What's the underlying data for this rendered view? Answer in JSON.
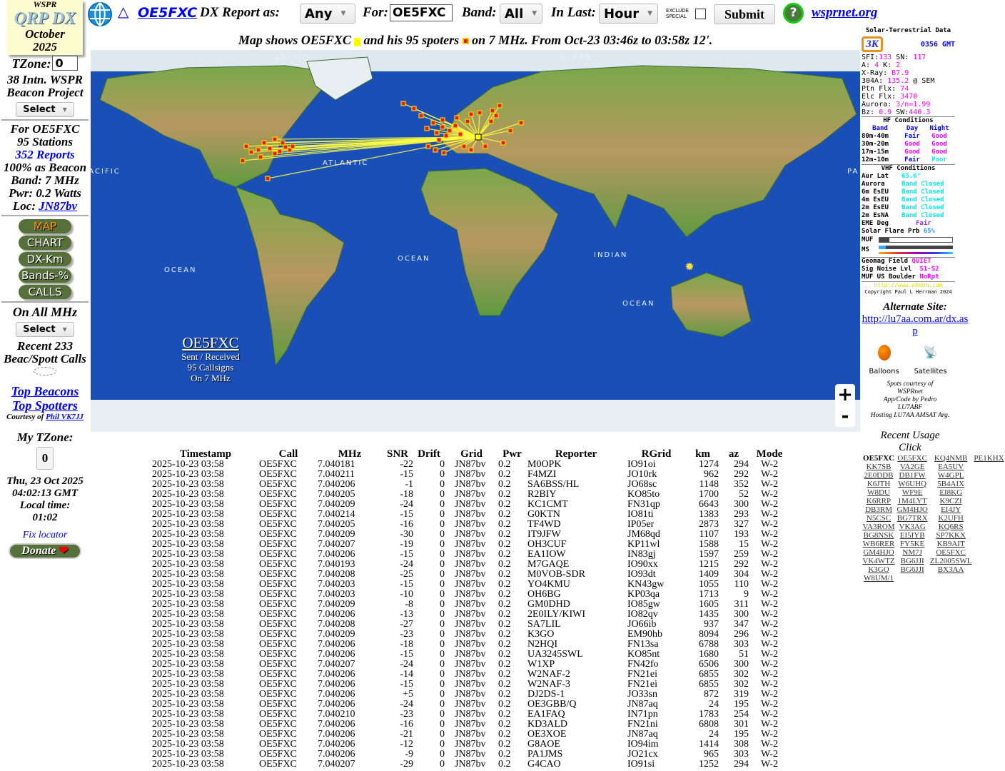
{
  "logo": {
    "top": "WSPR",
    "main": "QRP DX",
    "month": "October",
    "year": "2025"
  },
  "header": {
    "callsign_link": "OE5FXC",
    "report_as_label": "DX Report as:",
    "report_as_value": "Any",
    "for_label": "For:",
    "for_value": "OE5FXC",
    "band_label": "Band:",
    "band_value": "All",
    "in_last_label": "In Last:",
    "in_last_value": "Hour",
    "exclude_special": "EXCLUDE\nSPECIAL",
    "exclude_checked": false,
    "submit": "Submit",
    "help": "?",
    "wsprnet_link": "wsprnet.org"
  },
  "map_title": {
    "p1": "Map shows OE5FXC",
    "p2": "and his 95 spoters",
    "p3": "on 7 MHz. From Oct-23 03:46z to 03:58z 12'."
  },
  "sidebar": {
    "tzone_label": "TZone:",
    "tzone_value": "0",
    "project": "38 Intn. WSPR Beacon Project",
    "select": "Select",
    "for": "For OE5FXC",
    "stations": "95 Stations",
    "reports": "352 Reports",
    "beacon": "100% as Beacon",
    "band": "Band: 7 MHz",
    "pwr": "Pwr: 0.2 Watts",
    "loc_label": "Loc:",
    "loc": "JN87bv",
    "buttons": [
      "MAP",
      "CHART",
      "DX-Km",
      "Bands-%",
      "CALLS"
    ],
    "on_all": "On All MHz",
    "select2": "Select",
    "recent": "Recent 233 Beac/Spott Calls",
    "top_beacons": "Top Beacons",
    "top_spotters": "Top Spotters",
    "courtesy": "Courtesy of",
    "phil": "Phil VK7JJ",
    "my_tzone": "My TZone:",
    "my_tzone_value": "0",
    "datetime": "Thu, 23 Oct 2025 04:02:13 GMT",
    "local_label": "Local time:",
    "local": "01:02",
    "fix": "Fix locator",
    "donate": "Donate"
  },
  "map": {
    "oceans": [
      "ARCTIC",
      "OCEAN",
      "PACIFIC",
      "ATLANTIC",
      "PA",
      "OCEAN",
      "INDIAN",
      "OCEAN",
      "OCEAN"
    ],
    "caption": {
      "call": "OE5FXC",
      "l1": "Sent / Received",
      "l2": "95 Callsigns",
      "l3": "On 7 MHz"
    },
    "zoom_in": "+",
    "zoom_out": "-",
    "colors": {
      "ocean": "#1a4fb8",
      "line": "#ffff40",
      "spot": "#e02020"
    }
  },
  "solar": {
    "title": "Solar-Terrestrial Data",
    "time": "0356 GMT",
    "badge": "3K",
    "sfi": "133",
    "sn": "117",
    "a": "4",
    "k": "2",
    "xray": "B7.9",
    "a304": "135.2",
    "ptn": "74",
    "elc": "3470",
    "aurora": "3/n=1.99",
    "bz": "0.9",
    "sw": "440.3",
    "hf_title": "HF Conditions",
    "hf_head": [
      "Band",
      "Day",
      "Night"
    ],
    "hf": [
      [
        "80m-40m",
        "Fair",
        "Good"
      ],
      [
        "30m-20m",
        "Good",
        "Good"
      ],
      [
        "17m-15m",
        "Good",
        "Good"
      ],
      [
        "12m-10m",
        "Fair",
        "Poor"
      ]
    ],
    "vhf_title": "VHF Conditions",
    "aur_lat": "65.6°",
    "vhf": [
      [
        "Aurora",
        "Band Closed"
      ],
      [
        "6m EsEU",
        "Band Closed"
      ],
      [
        "4m EsEU",
        "Band Closed"
      ],
      [
        "2m EsEU",
        "Band Closed"
      ],
      [
        "2m EsNA",
        "Band Closed"
      ]
    ],
    "eme": "Fair",
    "flare": "65%",
    "geomag": "QUIET",
    "noise": "S1-S2",
    "muf_boulder": "NoRpt",
    "url": "http://www.n0nbh.com",
    "copyright": "Copyright Paul L Herrman 2024"
  },
  "right": {
    "alt_label": "Alternate Site:",
    "alt_link": "http://lu7aa.com.ar/dx.asp",
    "balloons": "Balloons",
    "satellites": "Satellites",
    "credits": [
      "Spots courtesy of",
      "WSPRnet",
      "App/Code by Pedro",
      "LU7ABF",
      "Hosting LU7AA AMSAT Arg."
    ],
    "recent_usage": "Recent Usage",
    "click": "Click",
    "recent_calls": [
      [
        "OE5FXC",
        "OE5FXC",
        "KQ4NMB",
        "PE1KHX"
      ],
      [
        "KK7SB",
        "VA2GE",
        "EA5UV"
      ],
      [
        "2E0DDB",
        "DB1FW",
        "W4GPL"
      ],
      [
        "K6JTH",
        "W6UHQ",
        "5B4AIX"
      ],
      [
        "W8DU",
        "WF9E",
        "EI8KG"
      ],
      [
        "K6RRP",
        "1M4LYT",
        "K9CZI"
      ],
      [
        "DB3RM",
        "GM4HJO",
        "EI4JY"
      ],
      [
        "N5CSC",
        "BG7TRX",
        "K2UFH"
      ],
      [
        "VA3ROM",
        "VK3AG",
        "KQ6RS"
      ],
      [
        "BG8NSK",
        "EI5IYB",
        "SP7KKX"
      ],
      [
        "WB6RER",
        "FY5KE",
        "KB9AIT"
      ],
      [
        "GM4HJO",
        "NM7J",
        "OE5FXC"
      ],
      [
        "VK4WTZ",
        "BG6JJI",
        "ZL2005SWL"
      ],
      [
        "K3GO",
        "BG6JJI",
        "BX3AA"
      ],
      [
        "W8UM/1"
      ]
    ]
  },
  "table": {
    "headers": [
      "Timestamp",
      "Call",
      "MHz",
      "SNR",
      "Drift",
      "Grid",
      "Pwr",
      "Reporter",
      "RGrid",
      "km",
      "az",
      "Mode"
    ],
    "rows": [
      [
        "2025-10-23 03:58",
        "OE5FXC",
        "7.040181",
        "-22",
        "0",
        "JN87bv",
        "0.2",
        "M0OPK",
        "IO91oi",
        "1274",
        "294",
        "W-2"
      ],
      [
        "2025-10-23 03:58",
        "OE5FXC",
        "7.040211",
        "-15",
        "0",
        "JN87bv",
        "0.2",
        "F4MZI",
        "JO10rk",
        "962",
        "292",
        "W-2"
      ],
      [
        "2025-10-23 03:58",
        "OE5FXC",
        "7.040206",
        "-1",
        "0",
        "JN87bv",
        "0.2",
        "SA6BSS/HL",
        "JO68sc",
        "1148",
        "352",
        "W-2"
      ],
      [
        "2025-10-23 03:58",
        "OE5FXC",
        "7.040205",
        "-18",
        "0",
        "JN87bv",
        "0.2",
        "R2BIY",
        "KO85to",
        "1700",
        "52",
        "W-2"
      ],
      [
        "2025-10-23 03:58",
        "OE5FXC",
        "7.040209",
        "-24",
        "0",
        "JN87bv",
        "0.2",
        "KC1CMT",
        "FN31qp",
        "6643",
        "300",
        "W-2"
      ],
      [
        "2025-10-23 03:58",
        "OE5FXC",
        "7.040214",
        "-15",
        "0",
        "JN87bv",
        "0.2",
        "G0KTN",
        "IO81ti",
        "1383",
        "293",
        "W-2"
      ],
      [
        "2025-10-23 03:58",
        "OE5FXC",
        "7.040205",
        "-16",
        "0",
        "JN87bv",
        "0.2",
        "TF4WD",
        "IP05er",
        "2873",
        "327",
        "W-2"
      ],
      [
        "2025-10-23 03:58",
        "OE5FXC",
        "7.040209",
        "-30",
        "0",
        "JN87bv",
        "0.2",
        "IT9JFW",
        "JM68qd",
        "1107",
        "193",
        "W-2"
      ],
      [
        "2025-10-23 03:58",
        "OE5FXC",
        "7.040207",
        "-19",
        "0",
        "JN87bv",
        "0.2",
        "OH3CUF",
        "KP11wl",
        "1588",
        "15",
        "W-2"
      ],
      [
        "2025-10-23 03:58",
        "OE5FXC",
        "7.040206",
        "-15",
        "0",
        "JN87bv",
        "0.2",
        "EA1IOW",
        "IN83gj",
        "1597",
        "259",
        "W-2"
      ],
      [
        "2025-10-23 03:58",
        "OE5FXC",
        "7.040193",
        "-24",
        "0",
        "JN87bv",
        "0.2",
        "M7GAQE",
        "IO90xx",
        "1215",
        "292",
        "W-2"
      ],
      [
        "2025-10-23 03:58",
        "OE5FXC",
        "7.040208",
        "-25",
        "0",
        "JN87bv",
        "0.2",
        "M0VOB-SDR",
        "IO93dt",
        "1409",
        "304",
        "W-2"
      ],
      [
        "2025-10-23 03:58",
        "OE5FXC",
        "7.040203",
        "-15",
        "0",
        "JN87bv",
        "0.2",
        "YO4KMU",
        "KN43gw",
        "1055",
        "110",
        "W-2"
      ],
      [
        "2025-10-23 03:58",
        "OE5FXC",
        "7.040203",
        "-10",
        "0",
        "JN87bv",
        "0.2",
        "OH6BG",
        "KP03qa",
        "1713",
        "9",
        "W-2"
      ],
      [
        "2025-10-23 03:58",
        "OE5FXC",
        "7.040209",
        "-8",
        "0",
        "JN87bv",
        "0.2",
        "GM0DHD",
        "IO85gw",
        "1605",
        "311",
        "W-2"
      ],
      [
        "2025-10-23 03:58",
        "OE5FXC",
        "7.040206",
        "-13",
        "0",
        "JN87bv",
        "0.2",
        "2E0ILY/KIWI",
        "IO82qv",
        "1435",
        "300",
        "W-2"
      ],
      [
        "2025-10-23 03:58",
        "OE5FXC",
        "7.040208",
        "-27",
        "0",
        "JN87bv",
        "0.2",
        "SA7LIL",
        "JO66ib",
        "937",
        "347",
        "W-2"
      ],
      [
        "2025-10-23 03:58",
        "OE5FXC",
        "7.040209",
        "-23",
        "0",
        "JN87bv",
        "0.2",
        "K3GO",
        "EM90hb",
        "8094",
        "296",
        "W-2"
      ],
      [
        "2025-10-23 03:58",
        "OE5FXC",
        "7.040206",
        "-18",
        "0",
        "JN87bv",
        "0.2",
        "N2HQI",
        "FN13sa",
        "6788",
        "303",
        "W-2"
      ],
      [
        "2025-10-23 03:58",
        "OE5FXC",
        "7.040206",
        "-15",
        "0",
        "JN87bv",
        "0.2",
        "UA3245SWL",
        "KO85nt",
        "1680",
        "51",
        "W-2"
      ],
      [
        "2025-10-23 03:58",
        "OE5FXC",
        "7.040207",
        "-24",
        "0",
        "JN87bv",
        "0.2",
        "W1XP",
        "FN42fo",
        "6506",
        "300",
        "W-2"
      ],
      [
        "2025-10-23 03:58",
        "OE5FXC",
        "7.040206",
        "-14",
        "0",
        "JN87bv",
        "0.2",
        "W2NAF-2",
        "FN21ei",
        "6855",
        "302",
        "W-2"
      ],
      [
        "2025-10-23 03:58",
        "OE5FXC",
        "7.040206",
        "-15",
        "0",
        "JN87bv",
        "0.2",
        "W2NAF-3",
        "FN21ei",
        "6855",
        "302",
        "W-2"
      ],
      [
        "2025-10-23 03:58",
        "OE5FXC",
        "7.040206",
        "+5",
        "0",
        "JN87bv",
        "0.2",
        "DJ2DS-1",
        "JO33sn",
        "872",
        "319",
        "W-2"
      ],
      [
        "2025-10-23 03:58",
        "OE5FXC",
        "7.040206",
        "-24",
        "0",
        "JN87bv",
        "0.2",
        "OE3GBB/Q",
        "JN87aq",
        "24",
        "195",
        "W-2"
      ],
      [
        "2025-10-23 03:58",
        "OE5FXC",
        "7.040210",
        "-23",
        "0",
        "JN87bv",
        "0.2",
        "EA1FAQ",
        "IN71pn",
        "1783",
        "254",
        "W-2"
      ],
      [
        "2025-10-23 03:58",
        "OE5FXC",
        "7.040206",
        "-16",
        "0",
        "JN87bv",
        "0.2",
        "KD3ALD",
        "FN21ni",
        "6808",
        "301",
        "W-2"
      ],
      [
        "2025-10-23 03:58",
        "OE5FXC",
        "7.040206",
        "-21",
        "0",
        "JN87bv",
        "0.2",
        "OE3XOE",
        "JN87aq",
        "24",
        "195",
        "W-2"
      ],
      [
        "2025-10-23 03:58",
        "OE5FXC",
        "7.040206",
        "-12",
        "0",
        "JN87bv",
        "0.2",
        "G8AOE",
        "IO94im",
        "1414",
        "308",
        "W-2"
      ],
      [
        "2025-10-23 03:58",
        "OE5FXC",
        "7.040206",
        "-9",
        "0",
        "JN87bv",
        "0.2",
        "PA1JMS",
        "JO21cx",
        "965",
        "303",
        "W-2"
      ],
      [
        "2025-10-23 03:58",
        "OE5FXC",
        "7.040207",
        "-29",
        "0",
        "JN87bv",
        "0.2",
        "G4CAO",
        "IO91si",
        "1252",
        "294",
        "W-2"
      ]
    ]
  }
}
